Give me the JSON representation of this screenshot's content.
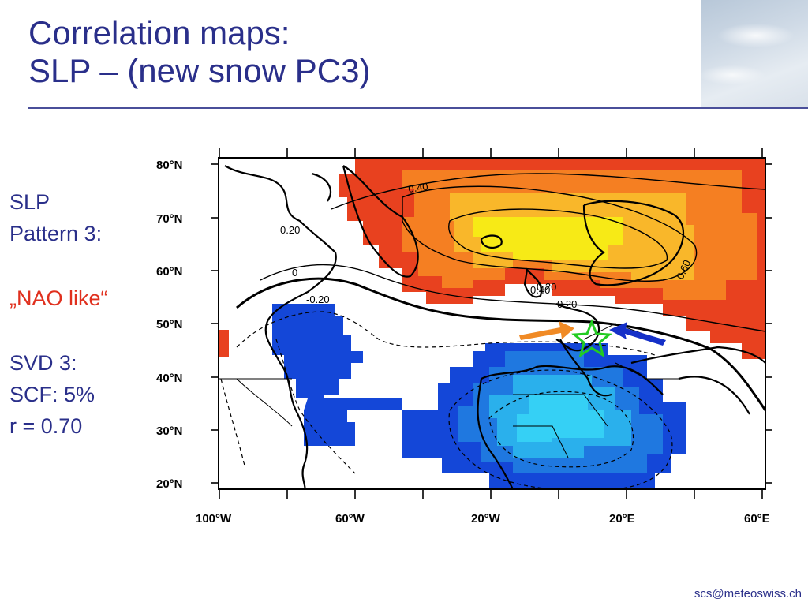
{
  "slide": {
    "title_line1": "Correlation maps:",
    "title_line2": "SLP – (new snow PC3)",
    "footer": "scs@meteoswiss.ch"
  },
  "sidebar": {
    "line1": "SLP",
    "line2": "Pattern 3:",
    "highlight": "„NAO like“",
    "line3": "SVD 3:",
    "line4": "SCF: 5%",
    "line5": "r = 0.70",
    "highlight_color": "#e0301e"
  },
  "map": {
    "lat_ticks": [
      "80°N",
      "70°N",
      "60°N",
      "50°N",
      "40°N",
      "30°N",
      "20°N"
    ],
    "lon_ticks": [
      "100°W",
      "60°W",
      "20°W",
      "20°E",
      "60°E"
    ],
    "contour_labels": [
      "0.40",
      "0.20",
      "0.20",
      "0.60",
      "0.40",
      "0.20",
      "-0.20",
      "0"
    ],
    "positive_colors": [
      "#e8411f",
      "#f57f22",
      "#f9b72a",
      "#f7ea16"
    ],
    "negative_colors": [
      "#1447d8",
      "#1f78e0",
      "#2ab0ec",
      "#35d0f5"
    ],
    "marker_color": "#22cc22",
    "arrow_west_color": "#f08a25",
    "arrow_east_color": "#1530c8"
  }
}
